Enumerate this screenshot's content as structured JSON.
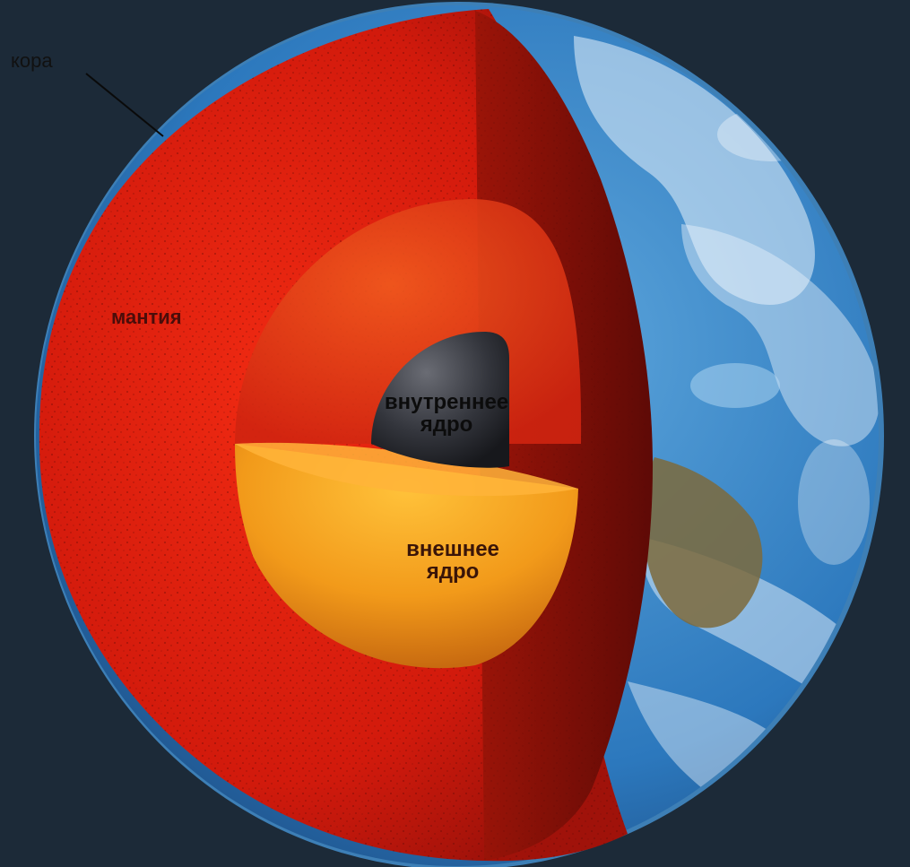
{
  "labels": {
    "crust": "кора",
    "mantle": "мантия",
    "inner_core_line1": "внутреннее",
    "inner_core_line2": "ядро",
    "outer_core_line1": "внешнее",
    "outer_core_line2": "ядро"
  },
  "colors": {
    "background": "#1c2a38",
    "crust_rim": "#3d7fb6",
    "mantle": "#d61d0c",
    "mantle_shadow": "#7a0e08",
    "outer_core": "#ff5a1a",
    "outer_core_cut": "#f2a21c",
    "inner_core": "#2e2f36",
    "ocean": "#2f7cc2",
    "clouds": "#e8f2fb",
    "land": "#7c6a3c"
  }
}
